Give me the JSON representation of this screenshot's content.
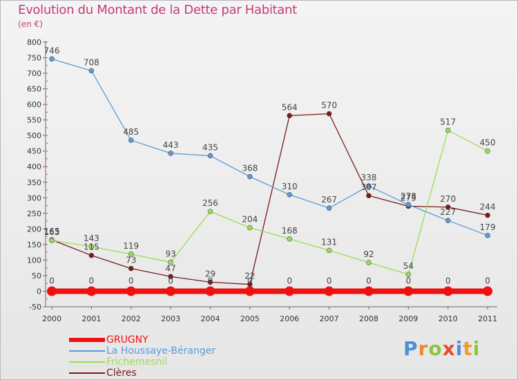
{
  "title": "Evolution du Montant de la Dette par Habitant",
  "subtitle": "(en €)",
  "logo": {
    "text": "Proxiti",
    "colors": [
      "#4a90d9",
      "#e88a2a",
      "#8cc63f",
      "#e84a2a",
      "#4a90d9",
      "#e8a02a",
      "#8cc63f"
    ]
  },
  "chart_data": {
    "type": "line",
    "title": "Evolution du Montant de la Dette par Habitant",
    "subtitle": "(en €)",
    "x": [
      "2000",
      "2001",
      "2002",
      "2003",
      "2004",
      "2005",
      "2006",
      "2007",
      "2008",
      "2009",
      "2010",
      "2011"
    ],
    "ylim": [
      -50,
      800
    ],
    "yticks": [
      -50,
      0,
      50,
      100,
      150,
      200,
      250,
      300,
      350,
      400,
      450,
      500,
      550,
      600,
      650,
      700,
      750,
      800
    ],
    "grid": false,
    "legend_position": "bottom-left",
    "series": [
      {
        "name": "GRUGNY",
        "color": "#ee1111",
        "values": [
          0,
          0,
          0,
          0,
          0,
          0,
          0,
          0,
          0,
          0,
          0,
          0
        ],
        "labels": [
          "0",
          "0",
          "0",
          "0",
          "0",
          "0",
          "0",
          "0",
          "0",
          "0",
          "0",
          "0"
        ]
      },
      {
        "name": "La Houssaye-Béranger",
        "color": "#5a9bd5",
        "values": [
          746,
          708,
          485,
          443,
          435,
          368,
          310,
          267,
          338,
          278,
          227,
          179
        ],
        "labels": [
          "746",
          "708",
          "485",
          "443",
          "435",
          "368",
          "310",
          "267",
          "338",
          "278",
          "227",
          "179"
        ]
      },
      {
        "name": "Frichemesnil",
        "color": "#99dd55",
        "values": [
          163,
          143,
          119,
          93,
          256,
          204,
          168,
          131,
          92,
          54,
          517,
          450
        ],
        "labels": [
          "163",
          "143",
          "119",
          "93",
          "256",
          "204",
          "168",
          "131",
          "92",
          "54",
          "517",
          "450"
        ]
      },
      {
        "name": "Clères",
        "color": "#7a1a1a",
        "values": [
          165,
          115,
          73,
          47,
          29,
          22,
          564,
          570,
          307,
          273,
          270,
          244
        ],
        "labels": [
          "165",
          "115",
          "73",
          "47",
          "29",
          "22",
          "564",
          "570",
          "307",
          "273",
          "270",
          "244"
        ]
      }
    ]
  }
}
